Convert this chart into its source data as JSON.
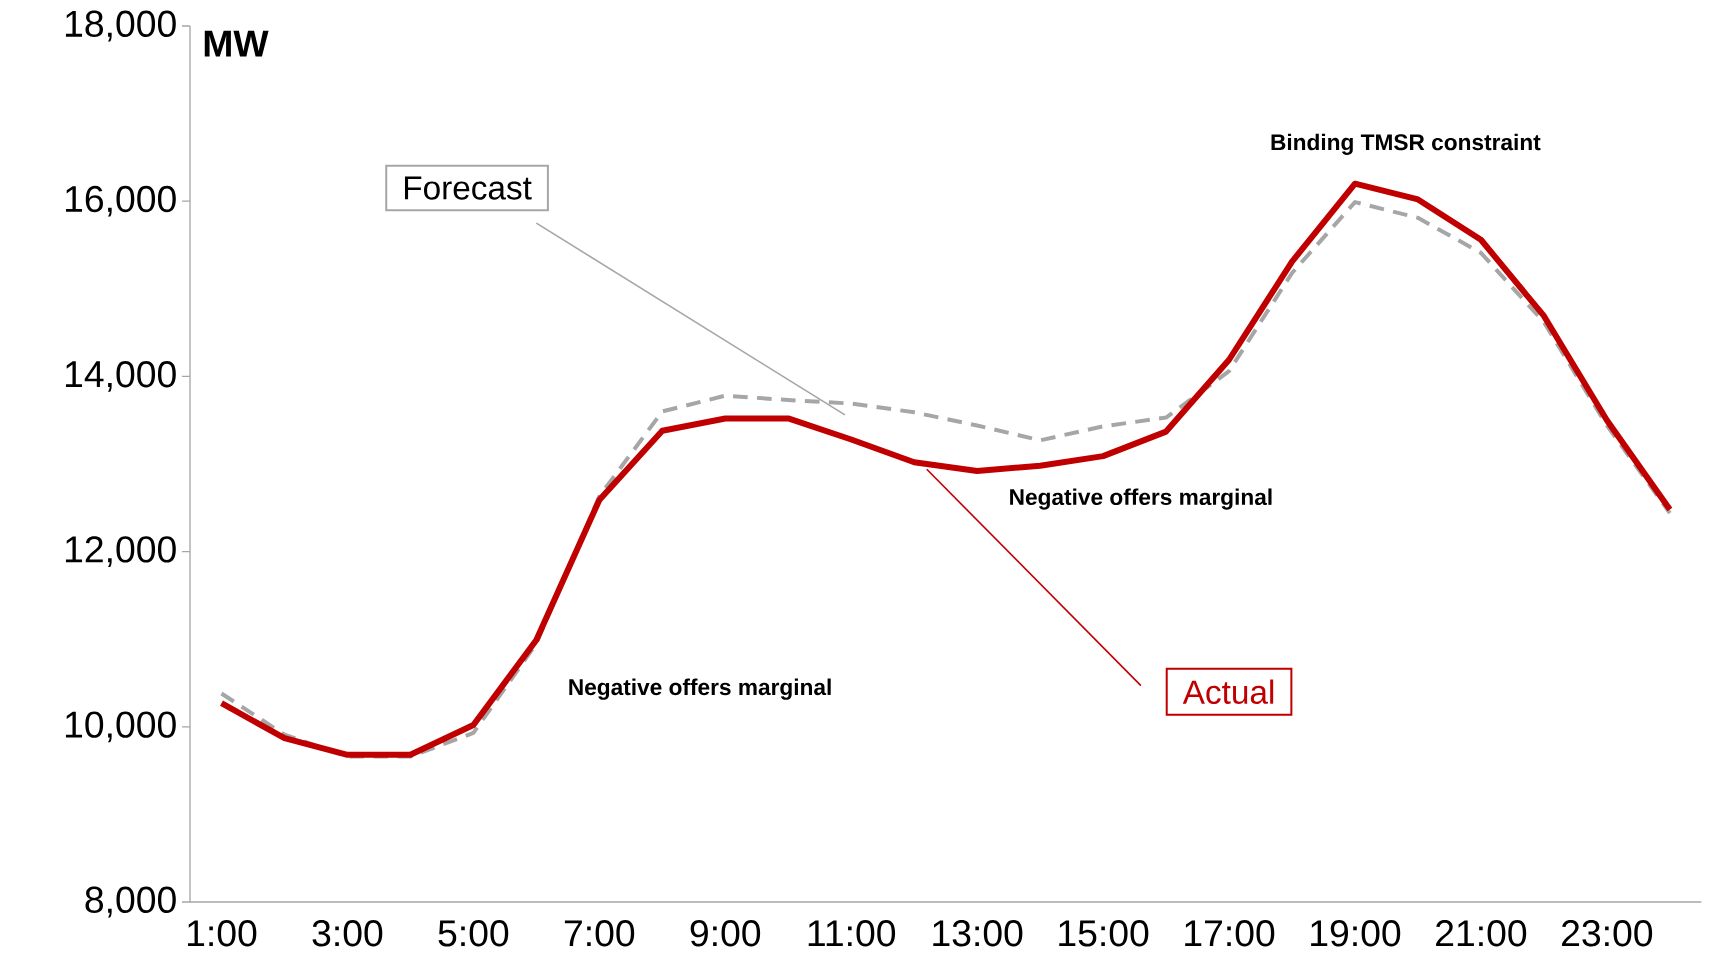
{
  "chart_data": {
    "type": "line",
    "ylabel": "MW",
    "categories": [
      "1:00",
      null,
      "3:00",
      null,
      "5:00",
      null,
      "7:00",
      null,
      "9:00",
      null,
      "11:00",
      null,
      "13:00",
      null,
      "15:00",
      null,
      "17:00",
      null,
      "19:00",
      null,
      "21:00",
      null,
      "23:00",
      null
    ],
    "series": [
      {
        "name": "Forecast",
        "color": "#a6a6a6",
        "line_style": "dashed",
        "values": [
          10380,
          9910,
          9660,
          9660,
          9930,
          10950,
          12630,
          13600,
          13780,
          13730,
          13690,
          13590,
          13440,
          13270,
          13430,
          13530,
          14060,
          15180,
          15990,
          15810,
          15410,
          14620,
          13440,
          12440
        ]
      },
      {
        "name": "Actual",
        "color": "#c00000",
        "line_style": "solid",
        "values": [
          10270,
          9870,
          9680,
          9680,
          10020,
          10990,
          12590,
          13380,
          13520,
          13520,
          13280,
          13020,
          12920,
          12980,
          13090,
          13370,
          14190,
          15310,
          16200,
          16020,
          15560,
          14690,
          13500,
          12480
        ]
      }
    ],
    "ylim": [
      8000,
      18000
    ],
    "yticks": [
      {
        "value": 8000,
        "label": "8,000"
      },
      {
        "value": 10000,
        "label": "10,000"
      },
      {
        "value": 12000,
        "label": "12,000"
      },
      {
        "value": 14000,
        "label": "14,000"
      },
      {
        "value": 16000,
        "label": "16,000"
      },
      {
        "value": 18000,
        "label": "18,000"
      }
    ],
    "annotations": [
      "Binding TMSR constraint",
      "Negative offers marginal",
      "Negative offers marginal"
    ],
    "marker": "none",
    "legend": false,
    "grid": false
  }
}
